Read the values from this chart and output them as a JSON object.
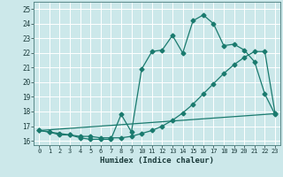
{
  "xlabel": "Humidex (Indice chaleur)",
  "bg_color": "#cce8ea",
  "grid_color": "#b0d4d8",
  "line_color": "#1a7a6e",
  "xlim": [
    -0.5,
    23.5
  ],
  "ylim": [
    15.7,
    25.5
  ],
  "yticks": [
    16,
    17,
    18,
    19,
    20,
    21,
    22,
    23,
    24,
    25
  ],
  "xtick_vals": [
    0,
    1,
    2,
    3,
    4,
    5,
    6,
    7,
    8,
    9,
    10,
    11,
    12,
    13,
    14,
    15,
    16,
    17,
    18,
    19,
    20,
    21,
    22,
    23
  ],
  "xtick_labels": [
    "0",
    "1",
    "2",
    "3",
    "4",
    "5",
    "6",
    "7",
    "8",
    "9",
    "10",
    "11",
    "12",
    "13",
    "14",
    "15",
    "16",
    "17",
    "18",
    "19",
    "20",
    "21",
    "22",
    "23"
  ],
  "series1_x": [
    0,
    1,
    2,
    3,
    4,
    5,
    6,
    7,
    8,
    9,
    10,
    11,
    12,
    13,
    14,
    15,
    16,
    17,
    18,
    19,
    20,
    21,
    22,
    23
  ],
  "series1_y": [
    16.7,
    16.6,
    16.4,
    16.4,
    16.2,
    16.1,
    16.1,
    16.1,
    17.8,
    16.6,
    20.9,
    22.1,
    22.2,
    23.2,
    22.0,
    24.2,
    24.6,
    24.0,
    22.5,
    22.6,
    22.2,
    21.4,
    19.2,
    17.8
  ],
  "series2_x": [
    0,
    1,
    2,
    3,
    4,
    5,
    6,
    7,
    8,
    9,
    10,
    11,
    12,
    13,
    14,
    15,
    16,
    17,
    18,
    19,
    20,
    21,
    22,
    23
  ],
  "series2_y": [
    16.7,
    16.6,
    16.5,
    16.4,
    16.3,
    16.3,
    16.2,
    16.2,
    16.2,
    16.3,
    16.5,
    16.7,
    17.0,
    17.4,
    17.9,
    18.5,
    19.2,
    19.9,
    20.6,
    21.2,
    21.7,
    22.1,
    22.1,
    17.9
  ],
  "series3_x": [
    0,
    23
  ],
  "series3_y": [
    16.7,
    17.85
  ]
}
